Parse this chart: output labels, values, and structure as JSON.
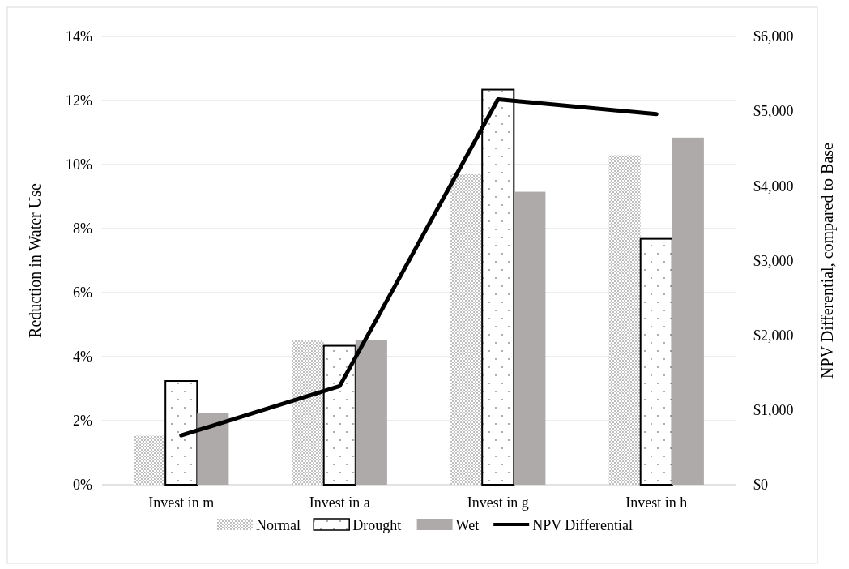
{
  "chart_data": {
    "type": "bar",
    "categories": [
      "Invest in m",
      "Invest in a",
      "Invest in g",
      "Invest in h"
    ],
    "series": [
      {
        "name": "Normal",
        "color": "#bfbfbf",
        "values": [
          1.53,
          4.53,
          9.7,
          10.29
        ]
      },
      {
        "name": "Drought",
        "color": "#ffffff",
        "values": [
          3.24,
          4.34,
          12.34,
          7.68
        ]
      },
      {
        "name": "Wet",
        "color": "#aeaaaa",
        "values": [
          2.25,
          4.53,
          9.15,
          10.84
        ]
      },
      {
        "name": "NPV Differential",
        "type": "line",
        "axis": "y2",
        "color": "#000000",
        "values": [
          660,
          1320,
          5160,
          4960
        ]
      }
    ],
    "ylabel": "Reduction in Water Use",
    "y2label": "NPV Differential, compared to Base",
    "ylim": [
      0,
      14
    ],
    "yticks": [
      {
        "value": 0,
        "label": "0%"
      },
      {
        "value": 2,
        "label": "2%"
      },
      {
        "value": 4,
        "label": "4%"
      },
      {
        "value": 6,
        "label": "6%"
      },
      {
        "value": 8,
        "label": "8%"
      },
      {
        "value": 10,
        "label": "10%"
      },
      {
        "value": 12,
        "label": "12%"
      },
      {
        "value": 14,
        "label": "14%"
      }
    ],
    "y2lim": [
      0,
      6000
    ],
    "y2ticks": [
      {
        "value": 0,
        "label": "$0"
      },
      {
        "value": 1000,
        "label": "$1,000"
      },
      {
        "value": 2000,
        "label": "$2,000"
      },
      {
        "value": 3000,
        "label": "$3,000"
      },
      {
        "value": 4000,
        "label": "$4,000"
      },
      {
        "value": 5000,
        "label": "$5,000"
      },
      {
        "value": 6000,
        "label": "$6,000"
      }
    ],
    "grid": "y",
    "legend": "bottom",
    "marker": "none",
    "line_style": "solid"
  }
}
